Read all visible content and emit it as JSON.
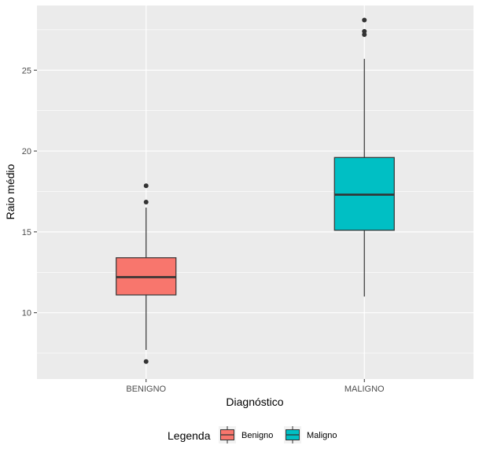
{
  "chart_data": {
    "type": "boxplot",
    "xlabel": "Diagnóstico",
    "ylabel": "Raio médio",
    "categories": [
      "BENIGNO",
      "MALIGNO"
    ],
    "ylim": [
      5.9,
      29.0
    ],
    "yticks": [
      10,
      15,
      20,
      25
    ],
    "grid": true,
    "legend": {
      "title": "Legenda",
      "position": "bottom",
      "items": [
        {
          "label": "Benigno",
          "color": "#F8766D"
        },
        {
          "label": "Maligno",
          "color": "#00BFC4"
        }
      ]
    },
    "series": [
      {
        "category": "BENIGNO",
        "color": "#F8766D",
        "whisker_low": 7.7,
        "q1": 11.1,
        "median": 12.2,
        "q3": 13.4,
        "whisker_high": 16.5,
        "outliers": [
          6.98,
          16.84,
          17.85
        ]
      },
      {
        "category": "MALIGNO",
        "color": "#00BFC4",
        "whisker_low": 11.0,
        "q1": 15.1,
        "median": 17.3,
        "q3": 19.6,
        "whisker_high": 25.7,
        "outliers": [
          27.2,
          27.4,
          28.1
        ]
      }
    ]
  }
}
